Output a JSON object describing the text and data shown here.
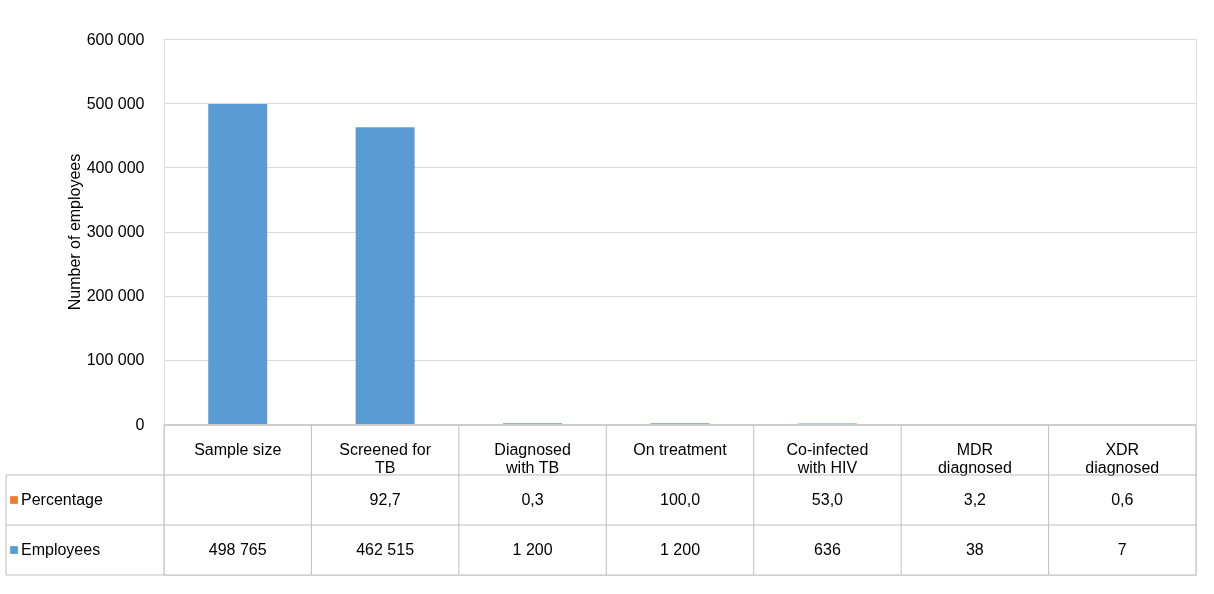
{
  "chart_data": {
    "type": "bar",
    "stacked": true,
    "ylabel": "Number of employees",
    "categories": [
      "Sample size",
      "Screened for TB",
      "Diagnosed with TB",
      "On treatment",
      "Co-infected with HIV",
      "MDR diagnosed",
      "XDR diagnosed"
    ],
    "series": [
      {
        "name": "Employees",
        "color": "#5b9bd5",
        "values": [
          498765,
          462515,
          1200,
          1200,
          636,
          38,
          7
        ],
        "value_labels": [
          "498 765",
          "462 515",
          "1 200",
          "1 200",
          "636",
          "38",
          "7"
        ]
      },
      {
        "name": "Percentage",
        "color": "#ed7d31",
        "values": [
          null,
          92.7,
          0.3,
          100.0,
          53.0,
          3.2,
          0.6
        ],
        "value_labels": [
          null,
          "92,7",
          "0,3",
          "100,0",
          "53,0",
          "3,2",
          "0,6"
        ]
      }
    ],
    "ylim": [
      0,
      600000
    ],
    "yticks": [
      0,
      {
        "value": 100000,
        "label": "100 000"
      },
      {
        "value": 200000,
        "label": "200 000"
      },
      {
        "value": 300000,
        "label": "300 000"
      },
      {
        "value": 400000,
        "label": "400 000"
      },
      {
        "value": 500000,
        "label": "500 000"
      },
      {
        "value": 600000,
        "label": "600 000"
      }
    ],
    "grid": "y",
    "legend": "bottom"
  }
}
